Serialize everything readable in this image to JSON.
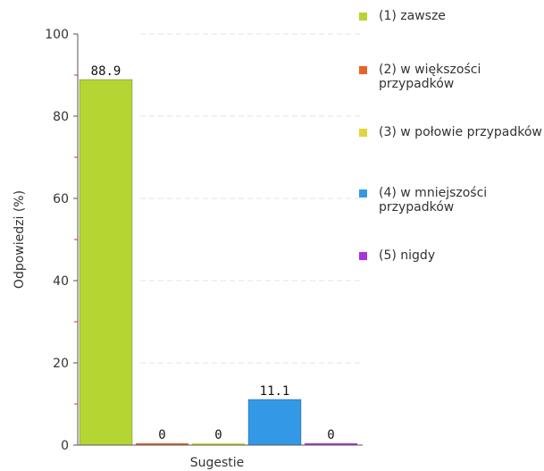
{
  "chart_data": {
    "type": "bar",
    "title": "",
    "xlabel": "Sugestie",
    "ylabel": "Odpowiedzi (%)",
    "ylim": [
      0,
      100
    ],
    "yticks": [
      "0",
      "20",
      "40",
      "60",
      "80",
      "100"
    ],
    "grid": true,
    "legend_position": "right",
    "series": [
      {
        "name": "(1) zawsze",
        "value": 88.9,
        "value_label": "88.9",
        "color": "#b5d632"
      },
      {
        "name": "(2) w większości przypadków",
        "value": 0,
        "value_label": "0",
        "color": "#e8632b"
      },
      {
        "name": "(3) w połowie przypadków",
        "value": 0,
        "value_label": "0",
        "color": "#e0d63c"
      },
      {
        "name": "(4) w mniejszości przypadków",
        "value": 11.1,
        "value_label": "11.1",
        "color": "#3399e6"
      },
      {
        "name": "(5) nigdy",
        "value": 0,
        "value_label": "0",
        "color": "#a934e0"
      }
    ]
  }
}
